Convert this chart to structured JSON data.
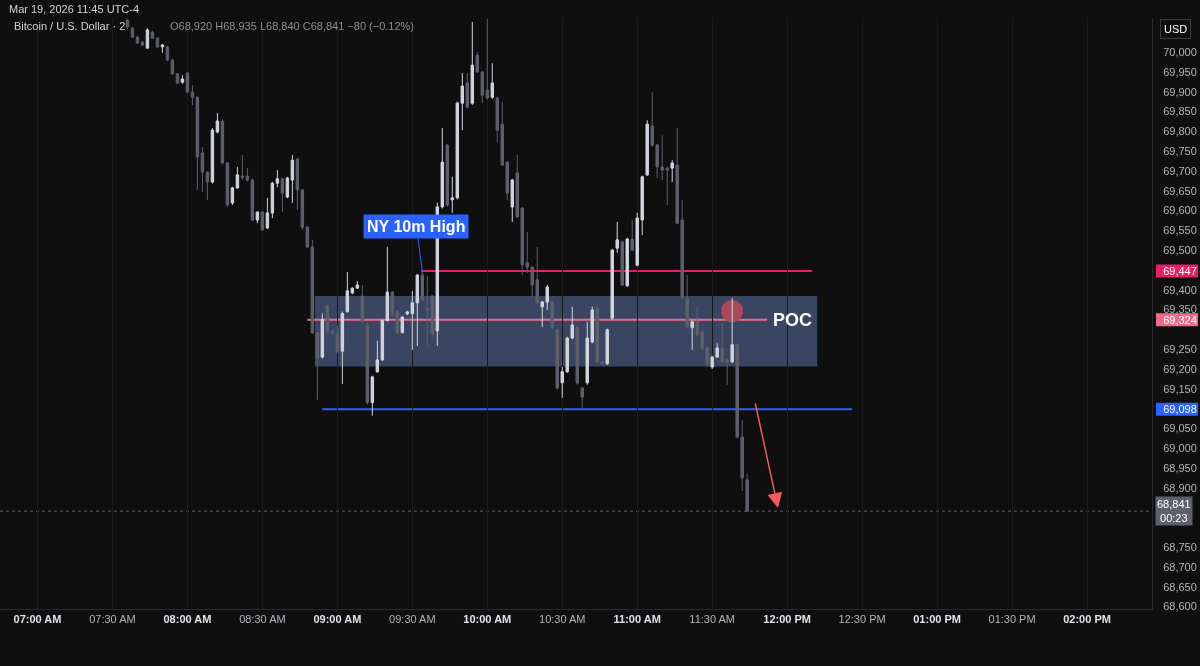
{
  "chart_data": {
    "type": "candlestick",
    "title": "Bitcoin / U.S. Dollar · 2",
    "subtitle": "O68,920 H68,935 L68,840 C68,841 −80 (−0.12%)",
    "ylabel": "USD",
    "x": [
      "2026-03-19T07:36",
      "2026-03-19T07:38",
      "2026-03-19T07:40",
      "2026-03-19T07:42",
      "2026-03-19T07:44",
      "2026-03-19T07:46",
      "2026-03-19T07:48",
      "2026-03-19T07:50",
      "2026-03-19T07:52",
      "2026-03-19T07:54",
      "2026-03-19T07:56",
      "2026-03-19T07:58",
      "2026-03-19T08:00",
      "2026-03-19T08:02",
      "2026-03-19T08:04",
      "2026-03-19T08:06",
      "2026-03-19T08:08",
      "2026-03-19T08:10",
      "2026-03-19T08:12",
      "2026-03-19T08:14",
      "2026-03-19T08:16",
      "2026-03-19T08:18",
      "2026-03-19T08:20",
      "2026-03-19T08:22",
      "2026-03-19T08:24",
      "2026-03-19T08:26",
      "2026-03-19T08:28",
      "2026-03-19T08:30",
      "2026-03-19T08:32",
      "2026-03-19T08:34",
      "2026-03-19T08:36",
      "2026-03-19T08:38",
      "2026-03-19T08:40",
      "2026-03-19T08:42",
      "2026-03-19T08:44",
      "2026-03-19T08:46",
      "2026-03-19T08:48",
      "2026-03-19T08:50",
      "2026-03-19T08:52",
      "2026-03-19T08:54",
      "2026-03-19T08:56",
      "2026-03-19T08:58",
      "2026-03-19T09:00",
      "2026-03-19T09:02",
      "2026-03-19T09:04",
      "2026-03-19T09:06",
      "2026-03-19T09:08",
      "2026-03-19T09:10",
      "2026-03-19T09:12",
      "2026-03-19T09:14",
      "2026-03-19T09:16",
      "2026-03-19T09:18",
      "2026-03-19T09:20",
      "2026-03-19T09:22",
      "2026-03-19T09:24",
      "2026-03-19T09:26",
      "2026-03-19T09:28",
      "2026-03-19T09:30",
      "2026-03-19T09:32",
      "2026-03-19T09:34",
      "2026-03-19T09:36",
      "2026-03-19T09:38",
      "2026-03-19T09:40",
      "2026-03-19T09:42",
      "2026-03-19T09:44",
      "2026-03-19T09:46",
      "2026-03-19T09:48",
      "2026-03-19T09:50",
      "2026-03-19T09:52",
      "2026-03-19T09:54",
      "2026-03-19T09:56",
      "2026-03-19T09:58",
      "2026-03-19T10:00",
      "2026-03-19T10:02",
      "2026-03-19T10:04",
      "2026-03-19T10:06",
      "2026-03-19T10:08",
      "2026-03-19T10:10",
      "2026-03-19T10:12",
      "2026-03-19T10:14",
      "2026-03-19T10:16",
      "2026-03-19T10:18",
      "2026-03-19T10:20",
      "2026-03-19T10:22",
      "2026-03-19T10:24",
      "2026-03-19T10:26",
      "2026-03-19T10:28",
      "2026-03-19T10:30",
      "2026-03-19T10:32",
      "2026-03-19T10:34",
      "2026-03-19T10:36",
      "2026-03-19T10:38",
      "2026-03-19T10:40",
      "2026-03-19T10:42",
      "2026-03-19T10:44",
      "2026-03-19T10:46",
      "2026-03-19T10:48",
      "2026-03-19T10:50",
      "2026-03-19T10:52",
      "2026-03-19T10:54",
      "2026-03-19T10:56",
      "2026-03-19T10:58",
      "2026-03-19T11:00",
      "2026-03-19T11:02",
      "2026-03-19T11:04",
      "2026-03-19T11:06",
      "2026-03-19T11:08",
      "2026-03-19T11:10",
      "2026-03-19T11:12",
      "2026-03-19T11:14",
      "2026-03-19T11:16",
      "2026-03-19T11:18",
      "2026-03-19T11:20",
      "2026-03-19T11:22",
      "2026-03-19T11:24",
      "2026-03-19T11:26",
      "2026-03-19T11:28",
      "2026-03-19T11:30",
      "2026-03-19T11:32",
      "2026-03-19T11:34",
      "2026-03-19T11:36",
      "2026-03-19T11:38",
      "2026-03-19T11:40",
      "2026-03-19T11:42",
      "2026-03-19T11:44"
    ],
    "ohlc": [
      [
        70080,
        70084,
        70058,
        70063
      ],
      [
        70060,
        70063,
        70035,
        70038
      ],
      [
        70038,
        70041,
        70020,
        70023
      ],
      [
        70025,
        70028,
        70015,
        70018
      ],
      [
        70010,
        70060,
        70008,
        70056
      ],
      [
        70050,
        70054,
        70033,
        70035
      ],
      [
        70035,
        70037,
        70010,
        70013
      ],
      [
        70013,
        70020,
        69998,
        70018
      ],
      [
        70013,
        70016,
        69977,
        69980
      ],
      [
        69980,
        69982,
        69942,
        69945
      ],
      [
        69945,
        69947,
        69919,
        69922
      ],
      [
        69924,
        69942,
        69920,
        69932
      ],
      [
        69947,
        69950,
        69896,
        69899
      ],
      [
        69899,
        69917,
        69866,
        69886
      ],
      [
        69886,
        69888,
        69652,
        69735
      ],
      [
        69745,
        69760,
        69647,
        69697
      ],
      [
        69697,
        69699,
        69627,
        69672
      ],
      [
        69672,
        69808,
        69668,
        69803
      ],
      [
        69798,
        69846,
        69795,
        69826
      ],
      [
        69826,
        69830,
        69716,
        69720
      ],
      [
        69720,
        69722,
        69609,
        69614
      ],
      [
        69619,
        69660,
        69614,
        69657
      ],
      [
        69657,
        69710,
        69655,
        69690
      ],
      [
        69687,
        69740,
        69677,
        69684
      ],
      [
        69687,
        69707,
        69674,
        69677
      ],
      [
        69677,
        69680,
        69573,
        69576
      ],
      [
        69576,
        69598,
        69568,
        69596
      ],
      [
        69596,
        69599,
        69548,
        69551
      ],
      [
        69556,
        69632,
        69553,
        69594
      ],
      [
        69594,
        69672,
        69581,
        69669
      ],
      [
        69669,
        69702,
        69659,
        69680
      ],
      [
        69680,
        69683,
        69596,
        69644
      ],
      [
        69634,
        69685,
        69631,
        69682
      ],
      [
        69677,
        69740,
        69619,
        69727
      ],
      [
        69730,
        69733,
        69601,
        69652
      ],
      [
        69652,
        69655,
        69551,
        69558
      ],
      [
        69558,
        69561,
        69505,
        69508
      ],
      [
        69508,
        69526,
        69288,
        69291
      ],
      [
        69291,
        69294,
        69122,
        69228
      ],
      [
        69230,
        69340,
        69226,
        69325
      ],
      [
        69360,
        69362,
        69290,
        69295
      ],
      [
        69296,
        69299,
        69286,
        69290
      ],
      [
        69291,
        69310,
        69240,
        69245
      ],
      [
        69245,
        69345,
        69162,
        69340
      ],
      [
        69345,
        69445,
        69342,
        69397
      ],
      [
        69392,
        69406,
        69388,
        69404
      ],
      [
        69404,
        69422,
        69402,
        69412
      ],
      [
        69384,
        69412,
        69315,
        69320
      ],
      [
        69310,
        69320,
        69110,
        69115
      ],
      [
        69115,
        69183,
        69082,
        69180
      ],
      [
        69193,
        69271,
        69190,
        69223
      ],
      [
        69223,
        69325,
        69220,
        69322
      ],
      [
        69322,
        69508,
        69320,
        69394
      ],
      [
        69394,
        69397,
        69334,
        69337
      ],
      [
        69345,
        69348,
        69288,
        69292
      ],
      [
        69292,
        69334,
        69289,
        69331
      ],
      [
        69339,
        69347,
        69336,
        69344
      ],
      [
        69340,
        69397,
        69248,
        69367
      ],
      [
        69367,
        69440,
        69258,
        69437
      ],
      [
        69437,
        69447,
        69370,
        69374
      ],
      [
        69352,
        69435,
        69258,
        69349
      ],
      [
        69384,
        69387,
        69280,
        69288
      ],
      [
        69296,
        69620,
        69258,
        69609
      ],
      [
        69609,
        69808,
        69605,
        69722
      ],
      [
        69765,
        69768,
        69610,
        69614
      ],
      [
        69627,
        69685,
        69594,
        69632
      ],
      [
        69632,
        69875,
        69628,
        69871
      ],
      [
        69871,
        69947,
        69803,
        69914
      ],
      [
        69922,
        69947,
        69858,
        69861
      ],
      [
        69871,
        70076,
        69866,
        69967
      ],
      [
        69992,
        70000,
        69947,
        69950
      ],
      [
        69950,
        69952,
        69871,
        69891
      ],
      [
        69904,
        70084,
        69880,
        69884
      ],
      [
        69886,
        69972,
        69882,
        69922
      ],
      [
        69884,
        69887,
        69773,
        69803
      ],
      [
        69818,
        69874,
        69712,
        69715
      ],
      [
        69722,
        69725,
        69627,
        69644
      ],
      [
        69609,
        69680,
        69571,
        69677
      ],
      [
        69695,
        69740,
        69581,
        69584
      ],
      [
        69606,
        69609,
        69437,
        69463
      ],
      [
        69468,
        69546,
        69442,
        69457
      ],
      [
        69457,
        69460,
        69382,
        69412
      ],
      [
        69425,
        69508,
        69364,
        69367
      ],
      [
        69357,
        69372,
        69306,
        69369
      ],
      [
        69369,
        69412,
        69349,
        69407
      ],
      [
        69369,
        69372,
        69300,
        69304
      ],
      [
        69299,
        69302,
        69148,
        69152
      ],
      [
        69165,
        69205,
        69127,
        69193
      ],
      [
        69193,
        69281,
        69190,
        69278
      ],
      [
        69278,
        69357,
        69275,
        69311
      ],
      [
        69306,
        69309,
        69160,
        69165
      ],
      [
        69152,
        69155,
        69102,
        69129
      ],
      [
        69165,
        69319,
        69160,
        69278
      ],
      [
        69268,
        69357,
        69265,
        69349
      ],
      [
        69354,
        69357,
        69215,
        69218
      ],
      [
        69218,
        69220,
        69210,
        69213
      ],
      [
        69213,
        69302,
        69210,
        69299
      ],
      [
        69328,
        69503,
        69325,
        69500
      ],
      [
        69505,
        69571,
        69493,
        69526
      ],
      [
        69521,
        69524,
        69409,
        69412
      ],
      [
        69410,
        69531,
        69407,
        69528
      ],
      [
        69528,
        69576,
        69497,
        69500
      ],
      [
        69462,
        69594,
        69459,
        69581
      ],
      [
        69576,
        69688,
        69538,
        69685
      ],
      [
        69690,
        69828,
        69687,
        69818
      ],
      [
        69813,
        69899,
        69762,
        69765
      ],
      [
        69765,
        69768,
        69682,
        69710
      ],
      [
        69710,
        69790,
        69677,
        69702
      ],
      [
        69707,
        69710,
        69614,
        69702
      ],
      [
        69707,
        69727,
        69672,
        69720
      ],
      [
        69715,
        69808,
        69566,
        69568
      ],
      [
        69576,
        69627,
        69376,
        69379
      ],
      [
        69379,
        69437,
        69303,
        69306
      ],
      [
        69304,
        69322,
        69248,
        69319
      ],
      [
        69319,
        69357,
        69283,
        69286
      ],
      [
        69293,
        69296,
        69248,
        69253
      ],
      [
        69253,
        69256,
        69206,
        69210
      ],
      [
        69205,
        69233,
        69200,
        69230
      ],
      [
        69230,
        69266,
        69228,
        69253
      ],
      [
        69253,
        69316,
        69215,
        69218
      ],
      [
        69223,
        69225,
        69160,
        69218
      ],
      [
        69218,
        69379,
        69215,
        69261
      ],
      [
        69261,
        69264,
        69025,
        69028
      ],
      [
        69028,
        69071,
        68892,
        68925
      ],
      [
        68920,
        68935,
        68840,
        68841
      ]
    ],
    "colors": [
      "#5d606b",
      "#5d606b",
      "#5d606b",
      "#5d606b",
      "#d1d4dc",
      "#5d606b",
      "#5d606b",
      "#d1d4dc",
      "#5d606b",
      "#5d606b",
      "#5d606b",
      "#d1d4dc",
      "#5d606b",
      "#5d606b",
      "#5d606b",
      "#5d606b",
      "#5d606b",
      "#d1d4dc",
      "#d1d4dc",
      "#5d606b",
      "#5d606b",
      "#d1d4dc",
      "#d1d4dc",
      "#5d606b",
      "#5d606b",
      "#5d606b",
      "#d1d4dc",
      "#5d606b",
      "#d1d4dc",
      "#d1d4dc",
      "#d1d4dc",
      "#5d606b",
      "#d1d4dc",
      "#d1d4dc",
      "#5d606b",
      "#5d606b",
      "#5d606b",
      "#5d606b",
      "#5d606b",
      "#d1d4dc",
      "#5d606b",
      "#5d606b",
      "#5d606b",
      "#d1d4dc",
      "#d1d4dc",
      "#d1d4dc",
      "#d1d4dc",
      "#5d606b",
      "#5d606b",
      "#d1d4dc",
      "#d1d4dc",
      "#d1d4dc",
      "#d1d4dc",
      "#5d606b",
      "#5d606b",
      "#d1d4dc",
      "#d1d4dc",
      "#d1d4dc",
      "#d1d4dc",
      "#5d606b",
      "#5d606b",
      "#5d606b",
      "#d1d4dc",
      "#d1d4dc",
      "#5d606b",
      "#d1d4dc",
      "#d1d4dc",
      "#d1d4dc",
      "#5d606b",
      "#d1d4dc",
      "#5d606b",
      "#5d606b",
      "#5d606b",
      "#d1d4dc",
      "#5d606b",
      "#5d606b",
      "#5d606b",
      "#d1d4dc",
      "#5d606b",
      "#5d606b",
      "#5d606b",
      "#5d606b",
      "#5d606b",
      "#d1d4dc",
      "#d1d4dc",
      "#5d606b",
      "#5d606b",
      "#d1d4dc",
      "#d1d4dc",
      "#d1d4dc",
      "#5d606b",
      "#5d606b",
      "#d1d4dc",
      "#d1d4dc",
      "#5d606b",
      "#5d606b",
      "#d1d4dc",
      "#d1d4dc",
      "#d1d4dc",
      "#5d606b",
      "#d1d4dc",
      "#5d606b",
      "#d1d4dc",
      "#d1d4dc",
      "#d1d4dc",
      "#5d606b",
      "#5d606b",
      "#5d606b",
      "#5d606b",
      "#d1d4dc",
      "#5d606b",
      "#5d606b",
      "#5d606b",
      "#d1d4dc",
      "#5d606b",
      "#5d606b",
      "#5d606b",
      "#d1d4dc",
      "#d1d4dc",
      "#5d606b",
      "#5d606b",
      "#d1d4dc",
      "#5d606b",
      "#5d606b",
      "#5d606b"
    ],
    "series": [
      {
        "type": "line",
        "x": [
          "2026-03-19T09:34",
          "2026-03-19T12:10"
        ],
        "values": [
          69447,
          69447
        ],
        "color": "#e91e63"
      },
      {
        "type": "line",
        "name": "POC",
        "x": [
          "2026-03-19T08:48",
          "2026-03-19T08:51",
          "2026-03-19T11:52",
          "2026-03-19T12:12"
        ],
        "values": [
          69324,
          69324,
          69324,
          null
        ],
        "lower": [
          null,
          69206,
          69206,
          69206
        ],
        "upper": [
          null,
          69384,
          69384,
          69384
        ],
        "color": "#f06b8a"
      },
      {
        "type": "line",
        "x": [
          "2026-03-19T08:54",
          "2026-03-19T12:26"
        ],
        "values": [
          69098,
          69098
        ],
        "color": "#2962ff"
      },
      {
        "type": "scatter",
        "x": [
          "2026-03-19T11:38"
        ],
        "values": [
          69346
        ],
        "color": "#a84a5a",
        "marker": "circle"
      }
    ],
    "ref_lines": [
      {
        "axis": "y",
        "value": 68841,
        "label": "68,841\n00:23",
        "color": "#5d606b",
        "line_style": "dotted"
      }
    ],
    "annotations": [
      "Mar 19, 2026 11:45 UTC-4",
      {
        "text": "NY 10m High",
        "x": "2026-03-19T09:34",
        "y": 69447
      }
    ],
    "xlim": [
      "2026-03-19T06:45",
      "2026-03-19T14:26"
    ],
    "xticks": [
      {
        "value": "2026-03-19T07:00",
        "label": "07:00 AM"
      },
      {
        "value": "2026-03-19T07:30",
        "label": "07:30 AM"
      },
      {
        "value": "2026-03-19T08:00",
        "label": "08:00 AM"
      },
      {
        "value": "2026-03-19T08:30",
        "label": "08:30 AM"
      },
      {
        "value": "2026-03-19T09:00",
        "label": "09:00 AM"
      },
      {
        "value": "2026-03-19T09:30",
        "label": "09:30 AM"
      },
      {
        "value": "2026-03-19T10:00",
        "label": "10:00 AM"
      },
      {
        "value": "2026-03-19T10:30",
        "label": "10:30 AM"
      },
      {
        "value": "2026-03-19T11:00",
        "label": "11:00 AM"
      },
      {
        "value": "2026-03-19T11:30",
        "label": "11:30 AM"
      },
      {
        "value": "2026-03-19T12:00",
        "label": "12:00 PM"
      },
      {
        "value": "2026-03-19T12:30",
        "label": "12:30 PM"
      },
      {
        "value": "2026-03-19T13:00",
        "label": "01:00 PM"
      },
      {
        "value": "2026-03-19T13:30",
        "label": "01:30 PM"
      },
      {
        "value": "2026-03-19T14:00",
        "label": "02:00 PM"
      }
    ],
    "ylim": [
      68594,
      70086
    ],
    "yticks": [
      {
        "value": 68600,
        "label": "68,600"
      },
      {
        "value": 68650,
        "label": "68,650"
      },
      {
        "value": 68700,
        "label": "68,700"
      },
      {
        "value": 68750,
        "label": "68,750"
      },
      {
        "value": 68900,
        "label": "68,900"
      },
      {
        "value": 68950,
        "label": "68,950"
      },
      {
        "value": 69000,
        "label": "69,000"
      },
      {
        "value": 69050,
        "label": "69,050"
      },
      {
        "value": 69098,
        "label": "69,098"
      },
      {
        "value": 69150,
        "label": "69,150"
      },
      {
        "value": 69200,
        "label": "69,200"
      },
      {
        "value": 69250,
        "label": "69,250"
      },
      {
        "value": 69324,
        "label": "69,324"
      },
      {
        "value": 69350,
        "label": "69,350"
      },
      {
        "value": 69400,
        "label": "69,400"
      },
      {
        "value": 69447,
        "label": "69,447"
      },
      {
        "value": 69500,
        "label": "69,500"
      },
      {
        "value": 69550,
        "label": "69,550"
      },
      {
        "value": 69600,
        "label": "69,600"
      },
      {
        "value": 69650,
        "label": "69,650"
      },
      {
        "value": 69700,
        "label": "69,700"
      },
      {
        "value": 69750,
        "label": "69,750"
      },
      {
        "value": 69800,
        "label": "69,800"
      },
      {
        "value": 69850,
        "label": "69,850"
      },
      {
        "value": 69900,
        "label": "69,900"
      },
      {
        "value": 69950,
        "label": "69,950"
      },
      {
        "value": 70000,
        "label": "70,000"
      }
    ],
    "grid": "x"
  }
}
